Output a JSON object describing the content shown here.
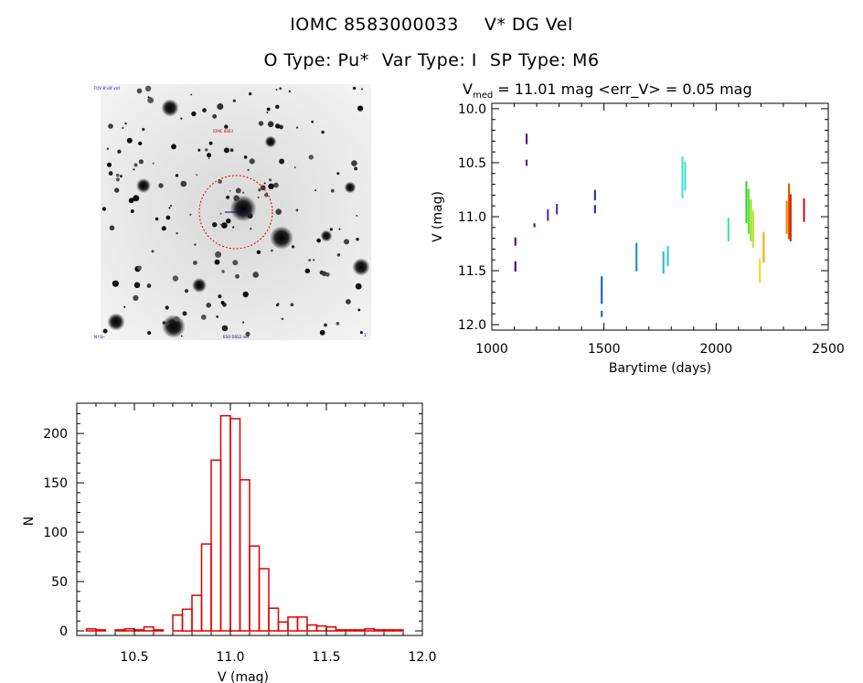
{
  "header": {
    "star_id": "IOMC 8583000033",
    "star_name": "V* DG Vel",
    "otype": "O Type: Pu*",
    "var_type": "Var Type: I",
    "sp_type": "SP Type: M6"
  },
  "image_panel": {
    "corner_top_left": "FOV 8'×8' vrd",
    "marker_label": "IOMC 8583",
    "corner_bottom_left": "N↑E←",
    "corner_bottom_center": "ESO DSS2 red",
    "corner_bottom_right": "1'"
  },
  "chart_data": [
    {
      "type": "scatter",
      "name": "light-curve",
      "title_prefix": "V",
      "title_sub": "med",
      "title_rest": " = 11.01 mag <err_V> = 0.05 mag",
      "xlabel": "Barytime (days)",
      "ylabel": "V (mag)",
      "xlim": [
        1000,
        2500
      ],
      "ylim": [
        12.0,
        10.0
      ],
      "xticks": [
        1000,
        1500,
        2000,
        2500
      ],
      "yticks": [
        10.0,
        10.5,
        11.0,
        11.5,
        12.0
      ],
      "ytick_labels": [
        "10.0",
        "10.5",
        "11.0",
        "11.5",
        "12.0"
      ],
      "series": [
        {
          "x": 1105,
          "ymin": 11.2,
          "ymax": 11.26,
          "color": "#4b0082"
        },
        {
          "x": 1105,
          "ymin": 11.42,
          "ymax": 11.5,
          "color": "#4b0082"
        },
        {
          "x": 1155,
          "ymin": 10.24,
          "ymax": 10.32,
          "color": "#55008a"
        },
        {
          "x": 1155,
          "ymin": 10.48,
          "ymax": 10.52,
          "color": "#55008a"
        },
        {
          "x": 1190,
          "ymin": 11.07,
          "ymax": 11.09,
          "color": "#5a0a9a"
        },
        {
          "x": 1250,
          "ymin": 10.94,
          "ymax": 11.03,
          "color": "#5a22b0"
        },
        {
          "x": 1290,
          "ymin": 10.89,
          "ymax": 10.97,
          "color": "#4a30b8"
        },
        {
          "x": 1460,
          "ymin": 10.76,
          "ymax": 10.84,
          "color": "#1c30b4"
        },
        {
          "x": 1460,
          "ymin": 10.9,
          "ymax": 10.96,
          "color": "#1c30b4"
        },
        {
          "x": 1490,
          "ymin": 11.56,
          "ymax": 11.8,
          "color": "#1060b8"
        },
        {
          "x": 1490,
          "ymin": 11.88,
          "ymax": 11.92,
          "color": "#1060b8"
        },
        {
          "x": 1645,
          "ymin": 11.25,
          "ymax": 11.5,
          "color": "#1a90c8"
        },
        {
          "x": 1765,
          "ymin": 11.33,
          "ymax": 11.52,
          "color": "#2ab8d8"
        },
        {
          "x": 1785,
          "ymin": 11.28,
          "ymax": 11.45,
          "color": "#2ec8dc"
        },
        {
          "x": 1850,
          "ymin": 10.45,
          "ymax": 10.82,
          "color": "#40e0d0"
        },
        {
          "x": 1862,
          "ymin": 10.5,
          "ymax": 10.75,
          "color": "#40e0d0"
        },
        {
          "x": 2055,
          "ymin": 11.02,
          "ymax": 11.22,
          "color": "#40e890"
        },
        {
          "x": 2135,
          "ymin": 10.68,
          "ymax": 11.05,
          "color": "#30d040"
        },
        {
          "x": 2145,
          "ymin": 10.75,
          "ymax": 11.15,
          "color": "#60e030"
        },
        {
          "x": 2155,
          "ymin": 10.85,
          "ymax": 11.22,
          "color": "#90e020"
        },
        {
          "x": 2165,
          "ymin": 10.95,
          "ymax": 11.28,
          "color": "#b8e820"
        },
        {
          "x": 2195,
          "ymin": 11.4,
          "ymax": 11.6,
          "color": "#e8e010"
        },
        {
          "x": 2212,
          "ymin": 11.15,
          "ymax": 11.42,
          "color": "#f0b010"
        },
        {
          "x": 2315,
          "ymin": 10.86,
          "ymax": 11.15,
          "color": "#f08000"
        },
        {
          "x": 2325,
          "ymin": 10.7,
          "ymax": 11.2,
          "color": "#e85000"
        },
        {
          "x": 2332,
          "ymin": 10.8,
          "ymax": 11.22,
          "color": "#d02000"
        },
        {
          "x": 2392,
          "ymin": 10.84,
          "ymax": 11.04,
          "color": "#c01010"
        }
      ]
    },
    {
      "type": "bar",
      "name": "histogram",
      "xlabel": "V (mag)",
      "ylabel": "N",
      "xlim": [
        10.2,
        12.0
      ],
      "ylim": [
        0,
        230
      ],
      "xticks": [
        10.5,
        11.0,
        11.5,
        12.0
      ],
      "xtick_labels": [
        "10.5",
        "11.0",
        "11.5",
        "12.0"
      ],
      "yticks": [
        0,
        50,
        100,
        150,
        200
      ],
      "bin_width": 0.05,
      "bin_start": 10.25,
      "values": [
        2,
        1,
        0,
        1,
        2,
        1,
        4,
        1,
        0,
        16,
        22,
        36,
        88,
        173,
        218,
        215,
        153,
        86,
        63,
        23,
        9,
        14,
        14,
        6,
        5,
        4,
        1,
        1,
        1,
        2,
        1,
        1,
        1,
        0
      ],
      "color": "#e00000"
    }
  ]
}
